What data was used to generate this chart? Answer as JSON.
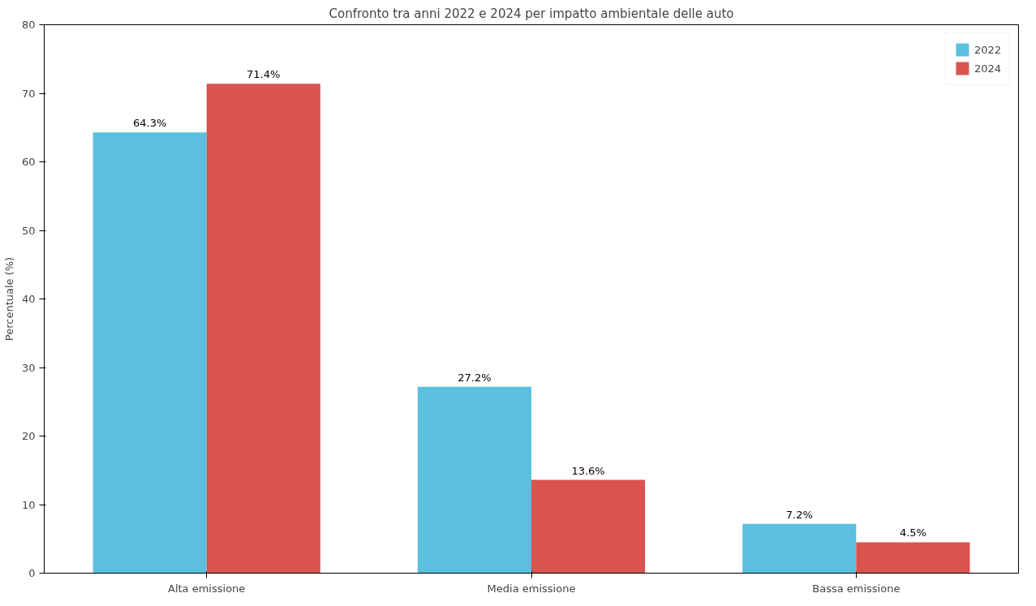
{
  "chart_data": {
    "type": "bar",
    "title": "Confronto tra anni 2022 e 2024 per impatto ambientale delle auto",
    "ylabel": "Percentuale (%)",
    "categories": [
      "Alta emissione",
      "Media emissione",
      "Bassa emissione"
    ],
    "series": [
      {
        "name": "2022",
        "color": "#5bc0de",
        "values": [
          64.3,
          27.2,
          7.2
        ],
        "value_labels": [
          "64.3%",
          "27.2%",
          "7.2%"
        ]
      },
      {
        "name": "2024",
        "color": "#d9534f",
        "values": [
          71.4,
          13.6,
          4.5
        ],
        "value_labels": [
          "71.4%",
          "13.6%",
          "4.5%"
        ]
      }
    ],
    "ylim": [
      0,
      80
    ],
    "yticks": [
      0,
      10,
      20,
      30,
      40,
      50,
      60,
      70,
      80
    ],
    "grid": false,
    "legend": "top right"
  }
}
